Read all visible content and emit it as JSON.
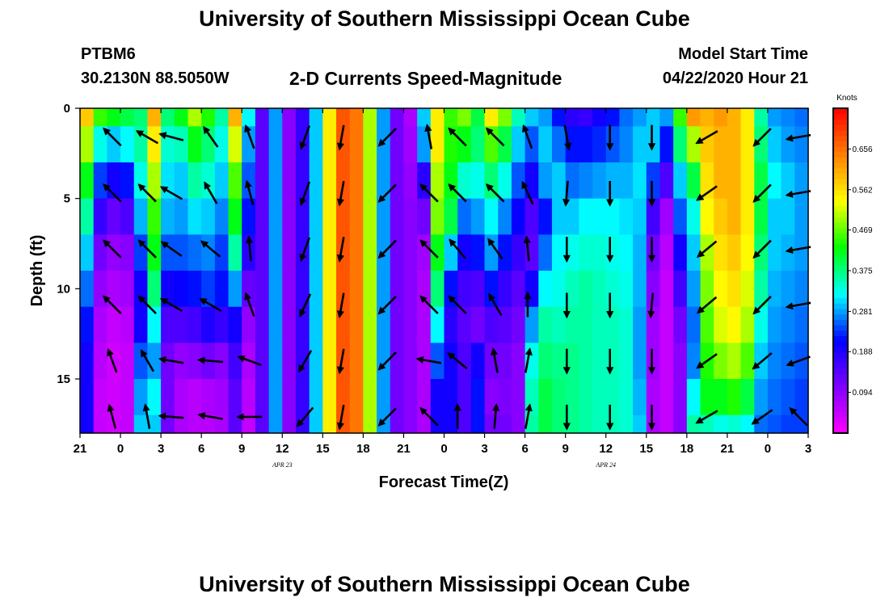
{
  "header": {
    "title": "University of Southern Mississippi Ocean Cube",
    "station_id": "PTBM6",
    "coordinates": "30.2130N 88.5050W",
    "chart_title": "2-D Currents Speed-Magnitude",
    "model_start_label": "Model Start Time",
    "model_start_value": "04/22/2020 Hour 21"
  },
  "footer": {
    "title": "University of Southern Mississippi Ocean Cube"
  },
  "colors": {
    "scale": [
      "#ff00ff",
      "#8000ff",
      "#0000ff",
      "#00ffff",
      "#00ff00",
      "#ffff00",
      "#ff8000",
      "#ff0000"
    ],
    "arrow": "#000000"
  },
  "chart_data": {
    "type": "heatmap",
    "xlabel": "Forecast Time(Z)",
    "ylabel": "Depth (ft)",
    "x_range_hours": [
      0,
      54
    ],
    "ylim": [
      18,
      0
    ],
    "x_ticks": [
      {
        "h": 0,
        "label": "21"
      },
      {
        "h": 3,
        "label": "0"
      },
      {
        "h": 6,
        "label": "3"
      },
      {
        "h": 9,
        "label": "6"
      },
      {
        "h": 12,
        "label": "9"
      },
      {
        "h": 15,
        "label": "12"
      },
      {
        "h": 18,
        "label": "15"
      },
      {
        "h": 21,
        "label": "18"
      },
      {
        "h": 24,
        "label": "21"
      },
      {
        "h": 27,
        "label": "0"
      },
      {
        "h": 30,
        "label": "3"
      },
      {
        "h": 33,
        "label": "6"
      },
      {
        "h": 36,
        "label": "9"
      },
      {
        "h": 39,
        "label": "12"
      },
      {
        "h": 42,
        "label": "15"
      },
      {
        "h": 45,
        "label": "18"
      },
      {
        "h": 48,
        "label": "21"
      },
      {
        "h": 51,
        "label": "0"
      },
      {
        "h": 54,
        "label": "3"
      }
    ],
    "date_labels": [
      {
        "h": 15,
        "label": "APR 23"
      },
      {
        "h": 39,
        "label": "APR 24"
      }
    ],
    "y_ticks": [
      0,
      5,
      10,
      15
    ],
    "colorbar": {
      "unit": "Knots",
      "range": [
        0,
        0.75
      ],
      "ticks": [
        0.094,
        0.188,
        0.281,
        0.375,
        0.469,
        0.562,
        0.656
      ]
    },
    "depth_levels": [
      0,
      2,
      4,
      6,
      8,
      10,
      12,
      14,
      16,
      18
    ],
    "speed_columns": [
      {
        "h": 0,
        "speeds": [
          0.58,
          0.5,
          0.42,
          0.36,
          0.3,
          0.26,
          0.22,
          0.2,
          0.2,
          0.2
        ]
      },
      {
        "h": 1,
        "speeds": [
          0.45,
          0.33,
          0.24,
          0.17,
          0.12,
          0.09,
          0.07,
          0.06,
          0.05,
          0.05
        ]
      },
      {
        "h": 2,
        "speeds": [
          0.42,
          0.3,
          0.2,
          0.13,
          0.09,
          0.07,
          0.05,
          0.04,
          0.04,
          0.04
        ]
      },
      {
        "h": 3,
        "speeds": [
          0.4,
          0.32,
          0.22,
          0.15,
          0.1,
          0.08,
          0.06,
          0.05,
          0.05,
          0.05
        ]
      },
      {
        "h": 4,
        "speeds": [
          0.38,
          0.36,
          0.33,
          0.29,
          0.24,
          0.2,
          0.2,
          0.25,
          0.28,
          0.3
        ]
      },
      {
        "h": 5,
        "speeds": [
          0.6,
          0.55,
          0.5,
          0.45,
          0.42,
          0.38,
          0.32,
          0.28,
          0.32,
          0.3
        ]
      },
      {
        "h": 6,
        "speeds": [
          0.38,
          0.34,
          0.31,
          0.29,
          0.25,
          0.2,
          0.15,
          0.12,
          0.12,
          0.12
        ]
      },
      {
        "h": 7,
        "speeds": [
          0.42,
          0.35,
          0.3,
          0.28,
          0.25,
          0.21,
          0.15,
          0.09,
          0.07,
          0.07
        ]
      },
      {
        "h": 8,
        "speeds": [
          0.5,
          0.42,
          0.36,
          0.31,
          0.26,
          0.22,
          0.16,
          0.1,
          0.06,
          0.06
        ]
      },
      {
        "h": 9,
        "speeds": [
          0.44,
          0.38,
          0.34,
          0.3,
          0.27,
          0.24,
          0.19,
          0.12,
          0.07,
          0.06
        ]
      },
      {
        "h": 10,
        "speeds": [
          0.36,
          0.33,
          0.3,
          0.27,
          0.24,
          0.22,
          0.17,
          0.1,
          0.08,
          0.07
        ]
      },
      {
        "h": 11,
        "speeds": [
          0.6,
          0.52,
          0.46,
          0.42,
          0.36,
          0.28,
          0.2,
          0.16,
          0.14,
          0.14
        ]
      },
      {
        "h": 12,
        "speeds": [
          0.32,
          0.28,
          0.25,
          0.22,
          0.18,
          0.13,
          0.09,
          0.07,
          0.06,
          0.05
        ]
      },
      {
        "h": 13,
        "speeds": [
          0.14,
          0.14,
          0.14,
          0.14,
          0.14,
          0.14,
          0.14,
          0.14,
          0.14,
          0.14
        ]
      },
      {
        "h": 14,
        "speeds": [
          0.28,
          0.28,
          0.28,
          0.28,
          0.28,
          0.28,
          0.28,
          0.28,
          0.28,
          0.28
        ]
      },
      {
        "h": 15,
        "speeds": [
          0.1,
          0.1,
          0.1,
          0.1,
          0.1,
          0.1,
          0.1,
          0.1,
          0.1,
          0.1
        ]
      },
      {
        "h": 16,
        "speeds": [
          0.17,
          0.17,
          0.17,
          0.17,
          0.17,
          0.17,
          0.17,
          0.17,
          0.17,
          0.17
        ]
      },
      {
        "h": 17,
        "speeds": [
          0.3,
          0.3,
          0.3,
          0.3,
          0.3,
          0.3,
          0.3,
          0.3,
          0.3,
          0.3
        ]
      },
      {
        "h": 18,
        "speeds": [
          0.55,
          0.55,
          0.55,
          0.55,
          0.55,
          0.55,
          0.55,
          0.55,
          0.55,
          0.55
        ]
      },
      {
        "h": 19,
        "speeds": [
          0.68,
          0.68,
          0.68,
          0.68,
          0.68,
          0.68,
          0.68,
          0.68,
          0.68,
          0.68
        ]
      },
      {
        "h": 20,
        "speeds": [
          0.65,
          0.65,
          0.65,
          0.65,
          0.65,
          0.65,
          0.65,
          0.65,
          0.65,
          0.65
        ]
      },
      {
        "h": 21,
        "speeds": [
          0.5,
          0.5,
          0.5,
          0.5,
          0.5,
          0.5,
          0.5,
          0.5,
          0.5,
          0.5
        ]
      },
      {
        "h": 22,
        "speeds": [
          0.28,
          0.28,
          0.28,
          0.28,
          0.28,
          0.28,
          0.28,
          0.28,
          0.28,
          0.28
        ]
      },
      {
        "h": 23,
        "speeds": [
          0.12,
          0.12,
          0.12,
          0.12,
          0.12,
          0.12,
          0.12,
          0.12,
          0.12,
          0.12
        ]
      },
      {
        "h": 24,
        "speeds": [
          0.07,
          0.08,
          0.09,
          0.1,
          0.1,
          0.1,
          0.1,
          0.1,
          0.1,
          0.1
        ]
      },
      {
        "h": 25,
        "speeds": [
          0.3,
          0.28,
          0.18,
          0.12,
          0.08,
          0.07,
          0.07,
          0.07,
          0.07,
          0.07
        ]
      },
      {
        "h": 26,
        "speeds": [
          0.55,
          0.55,
          0.5,
          0.48,
          0.42,
          0.38,
          0.32,
          0.25,
          0.2,
          0.2
        ]
      },
      {
        "h": 27,
        "speeds": [
          0.45,
          0.44,
          0.42,
          0.4,
          0.3,
          0.22,
          0.18,
          0.2,
          0.2,
          0.2
        ]
      },
      {
        "h": 28,
        "speeds": [
          0.48,
          0.42,
          0.34,
          0.26,
          0.2,
          0.16,
          0.14,
          0.15,
          0.15,
          0.15
        ]
      },
      {
        "h": 29,
        "speeds": [
          0.4,
          0.38,
          0.33,
          0.28,
          0.22,
          0.15,
          0.12,
          0.2,
          0.22,
          0.22
        ]
      },
      {
        "h": 30,
        "speeds": [
          0.55,
          0.46,
          0.38,
          0.32,
          0.28,
          0.22,
          0.15,
          0.12,
          0.1,
          0.12
        ]
      },
      {
        "h": 31,
        "speeds": [
          0.48,
          0.4,
          0.33,
          0.27,
          0.22,
          0.17,
          0.14,
          0.12,
          0.11,
          0.12
        ]
      },
      {
        "h": 32,
        "speeds": [
          0.35,
          0.3,
          0.25,
          0.21,
          0.17,
          0.14,
          0.12,
          0.1,
          0.1,
          0.1
        ]
      },
      {
        "h": 33,
        "speeds": [
          0.3,
          0.25,
          0.2,
          0.15,
          0.14,
          0.2,
          0.28,
          0.33,
          0.35,
          0.36
        ]
      },
      {
        "h": 34,
        "speeds": [
          0.28,
          0.3,
          0.28,
          0.22,
          0.26,
          0.32,
          0.36,
          0.38,
          0.4,
          0.4
        ]
      },
      {
        "h": 35,
        "speeds": [
          0.22,
          0.26,
          0.3,
          0.3,
          0.32,
          0.33,
          0.35,
          0.37,
          0.38,
          0.38
        ]
      },
      {
        "h": 36,
        "speeds": [
          0.18,
          0.22,
          0.26,
          0.3,
          0.33,
          0.35,
          0.36,
          0.37,
          0.37,
          0.37
        ]
      },
      {
        "h": 37,
        "speeds": [
          0.17,
          0.22,
          0.27,
          0.32,
          0.34,
          0.36,
          0.36,
          0.36,
          0.36,
          0.36
        ]
      },
      {
        "h": 38,
        "speeds": [
          0.2,
          0.23,
          0.28,
          0.32,
          0.34,
          0.35,
          0.35,
          0.35,
          0.35,
          0.35
        ]
      },
      {
        "h": 39,
        "speeds": [
          0.22,
          0.25,
          0.29,
          0.32,
          0.33,
          0.34,
          0.35,
          0.35,
          0.35,
          0.35
        ]
      },
      {
        "h": 40,
        "speeds": [
          0.26,
          0.27,
          0.29,
          0.31,
          0.32,
          0.33,
          0.34,
          0.34,
          0.34,
          0.34
        ]
      },
      {
        "h": 41,
        "speeds": [
          0.28,
          0.3,
          0.31,
          0.3,
          0.29,
          0.29,
          0.28,
          0.28,
          0.29,
          0.3
        ]
      },
      {
        "h": 42,
        "speeds": [
          0.3,
          0.3,
          0.24,
          0.16,
          0.12,
          0.1,
          0.08,
          0.08,
          0.07,
          0.07
        ]
      },
      {
        "h": 43,
        "speeds": [
          0.28,
          0.22,
          0.15,
          0.08,
          0.06,
          0.05,
          0.05,
          0.05,
          0.05,
          0.05
        ]
      },
      {
        "h": 44,
        "speeds": [
          0.45,
          0.38,
          0.3,
          0.25,
          0.2,
          0.16,
          0.12,
          0.1,
          0.1,
          0.1
        ]
      },
      {
        "h": 45,
        "speeds": [
          0.62,
          0.5,
          0.4,
          0.33,
          0.3,
          0.28,
          0.26,
          0.27,
          0.32,
          0.36
        ]
      },
      {
        "h": 46,
        "speeds": [
          0.6,
          0.58,
          0.56,
          0.54,
          0.5,
          0.48,
          0.46,
          0.44,
          0.42,
          0.35
        ]
      },
      {
        "h": 47,
        "speeds": [
          0.62,
          0.6,
          0.6,
          0.58,
          0.56,
          0.54,
          0.52,
          0.48,
          0.42,
          0.33
        ]
      },
      {
        "h": 48,
        "speeds": [
          0.6,
          0.6,
          0.6,
          0.6,
          0.58,
          0.56,
          0.54,
          0.5,
          0.44,
          0.34
        ]
      },
      {
        "h": 49,
        "speeds": [
          0.55,
          0.55,
          0.55,
          0.55,
          0.54,
          0.52,
          0.5,
          0.46,
          0.4,
          0.32
        ]
      },
      {
        "h": 50,
        "speeds": [
          0.36,
          0.38,
          0.4,
          0.4,
          0.38,
          0.36,
          0.33,
          0.3,
          0.28,
          0.26
        ]
      },
      {
        "h": 51,
        "speeds": [
          0.28,
          0.3,
          0.32,
          0.3,
          0.3,
          0.29,
          0.28,
          0.27,
          0.26,
          0.25
        ]
      },
      {
        "h": 52,
        "speeds": [
          0.27,
          0.28,
          0.3,
          0.3,
          0.29,
          0.28,
          0.27,
          0.26,
          0.25,
          0.24
        ]
      },
      {
        "h": 53,
        "speeds": [
          0.26,
          0.27,
          0.28,
          0.28,
          0.28,
          0.27,
          0.26,
          0.25,
          0.24,
          0.24
        ]
      }
    ],
    "arrow_depths": [
      1.6,
      4.7,
      7.8,
      10.9,
      14.0,
      17.1
    ],
    "arrow_columns": [
      {
        "h": 2.4,
        "angles": [
          135,
          135,
          135,
          135,
          110,
          105
        ]
      },
      {
        "h": 5.0,
        "angles": [
          150,
          135,
          135,
          135,
          120,
          100
        ]
      },
      {
        "h": 6.8,
        "angles": [
          165,
          150,
          145,
          150,
          170,
          175
        ]
      },
      {
        "h": 9.7,
        "angles": [
          125,
          120,
          140,
          150,
          175,
          170
        ]
      },
      {
        "h": 12.6,
        "angles": [
          110,
          105,
          95,
          110,
          160,
          180
        ]
      },
      {
        "h": 16.7,
        "angles": [
          -110,
          -110,
          -110,
          -115,
          -120,
          -130
        ]
      },
      {
        "h": 19.4,
        "angles": [
          -100,
          -100,
          -100,
          -100,
          -100,
          -100
        ]
      },
      {
        "h": 22.8,
        "angles": [
          -135,
          -135,
          -135,
          -135,
          -135,
          -135
        ]
      },
      {
        "h": 25.9,
        "angles": [
          100,
          135,
          135,
          135,
          170,
          135
        ]
      },
      {
        "h": 28.0,
        "angles": [
          135,
          135,
          130,
          135,
          140,
          90
        ]
      },
      {
        "h": 30.8,
        "angles": [
          135,
          135,
          125,
          120,
          100,
          85
        ]
      },
      {
        "h": 33.2,
        "angles": [
          110,
          115,
          95,
          90,
          80,
          80
        ]
      },
      {
        "h": 36.1,
        "angles": [
          -80,
          -95,
          -90,
          -90,
          -90,
          -90
        ]
      },
      {
        "h": 39.3,
        "angles": [
          -90,
          -90,
          -90,
          -90,
          -90,
          -90
        ]
      },
      {
        "h": 42.4,
        "angles": [
          -90,
          -90,
          -90,
          -95,
          -90,
          -90
        ]
      },
      {
        "h": 46.5,
        "angles": [
          -150,
          -145,
          -140,
          -140,
          -145,
          -150
        ]
      },
      {
        "h": 50.6,
        "angles": [
          -135,
          -135,
          -135,
          -135,
          -140,
          -145
        ]
      },
      {
        "h": 53.3,
        "angles": [
          -170,
          -170,
          -170,
          -170,
          -160,
          135
        ]
      }
    ]
  }
}
